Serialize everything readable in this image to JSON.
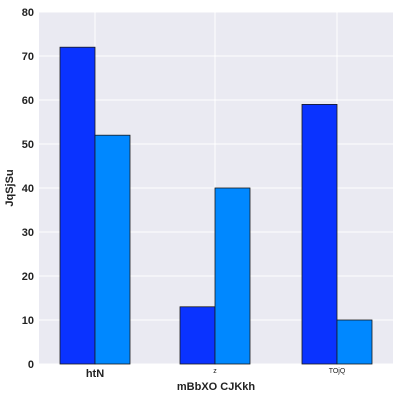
{
  "chart_data": {
    "type": "bar",
    "title": "",
    "xlabel": "mBbXO CJKkh",
    "ylabel": "JqSjSu",
    "categories": [
      "htN",
      "z",
      "TOjQ"
    ],
    "category_label_style": [
      "large",
      "small",
      "small"
    ],
    "series": [
      {
        "values": [
          72,
          13,
          59
        ],
        "color": "#0a33ff"
      },
      {
        "values": [
          52,
          40,
          10
        ],
        "color": "#0088ff"
      }
    ],
    "ylim": [
      0,
      80
    ],
    "yticks": [
      0,
      10,
      20,
      30,
      40,
      50,
      60,
      70,
      80
    ],
    "grid": true,
    "background": "#eaeaf2",
    "legend": "none"
  }
}
